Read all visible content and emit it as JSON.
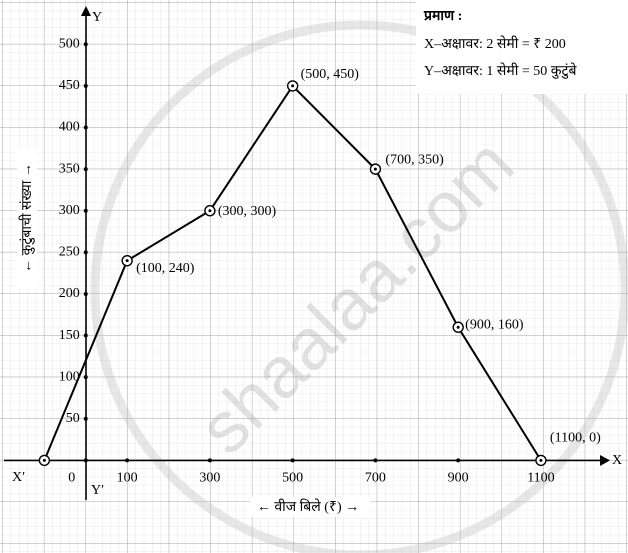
{
  "chart_data": {
    "type": "line",
    "x_axis_label": "← वीज बिले (₹) →",
    "y_axis_label": "← कुटुंबाची संख्या →",
    "axis_names": {
      "x": "X",
      "x_neg": "X′",
      "y": "Y",
      "y_neg": "Y′"
    },
    "scale_title": "प्रमाण :",
    "scale_lines": [
      "X–अक्षावर: 2 सेमी = ₹ 200",
      "Y–अक्षावर: 1 सेमी  = 50 कुटुंबे"
    ],
    "watermark": "shaalaa.com",
    "x": [
      -100,
      100,
      300,
      500,
      700,
      900,
      1100
    ],
    "series": [
      {
        "color": "#000000",
        "values": [
          0,
          240,
          300,
          450,
          350,
          160,
          0
        ],
        "value_labels": [
          null,
          "(100, 240)",
          "(300, 300)",
          "(500, 450)",
          "(700, 350)",
          "(900, 160)",
          "(1100, 0)"
        ]
      }
    ],
    "xlim": [
      -200,
      1250
    ],
    "ylim": [
      -50,
      540
    ],
    "xticks": [
      0,
      100,
      300,
      500,
      700,
      900,
      1100
    ],
    "yticks": [
      50,
      100,
      150,
      200,
      250,
      300,
      350,
      400,
      450,
      500
    ],
    "grid": true
  }
}
